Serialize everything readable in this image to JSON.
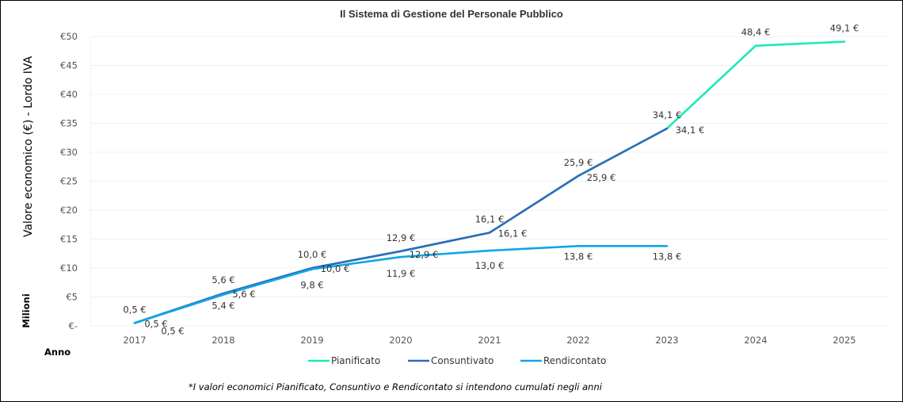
{
  "chart_data": {
    "type": "line",
    "title": "Il Sistema di Gestione del Personale Pubblico",
    "ylabel": "Valore economico (€) - Lordo IVA",
    "yunit_label": "Milioni",
    "xlabel": "Anno",
    "categories": [
      "2017",
      "2018",
      "2019",
      "2020",
      "2021",
      "2022",
      "2023",
      "2024",
      "2025"
    ],
    "y_ticks": [
      "€-",
      "€5",
      "€10",
      "€15",
      "€20",
      "€25",
      "€30",
      "€35",
      "€40",
      "€45",
      "€50"
    ],
    "ylim": [
      0,
      50
    ],
    "grid": true,
    "legend_position": "bottom",
    "series": [
      {
        "name": "Pianificato",
        "color": "#19EBB8",
        "values": [
          0.5,
          5.6,
          10.0,
          12.9,
          16.1,
          25.9,
          34.1,
          48.4,
          49.1
        ],
        "labels": [
          "0,5 €",
          "5,6 €",
          "10,0 €",
          "12,9 €",
          "16,1 €",
          "25,9 €",
          "34,1 €",
          "48,4 €",
          "49,1 €"
        ]
      },
      {
        "name": "Consuntivato",
        "color": "#2E6BB8",
        "values": [
          0.5,
          5.6,
          10.0,
          12.9,
          16.1,
          25.9,
          34.1,
          null,
          null
        ],
        "labels": [
          "0,5 €",
          "5,6 €",
          "10,0 €",
          "12,9 €",
          "16,1 €",
          "25,9 €",
          "34,1 €",
          null,
          null
        ]
      },
      {
        "name": "Rendicontato",
        "color": "#10A6E6",
        "values": [
          0.5,
          5.4,
          9.8,
          11.9,
          13.0,
          13.8,
          13.8,
          null,
          null
        ],
        "labels": [
          "0,5 €",
          "5,4 €",
          "9,8 €",
          "11,9 €",
          "13,0 €",
          "13,8 €",
          "13,8 €",
          null,
          null
        ]
      }
    ],
    "footnote": "*I valori economici Pianificato, Consuntivo e Rendicontato si intendono cumulati negli anni"
  }
}
